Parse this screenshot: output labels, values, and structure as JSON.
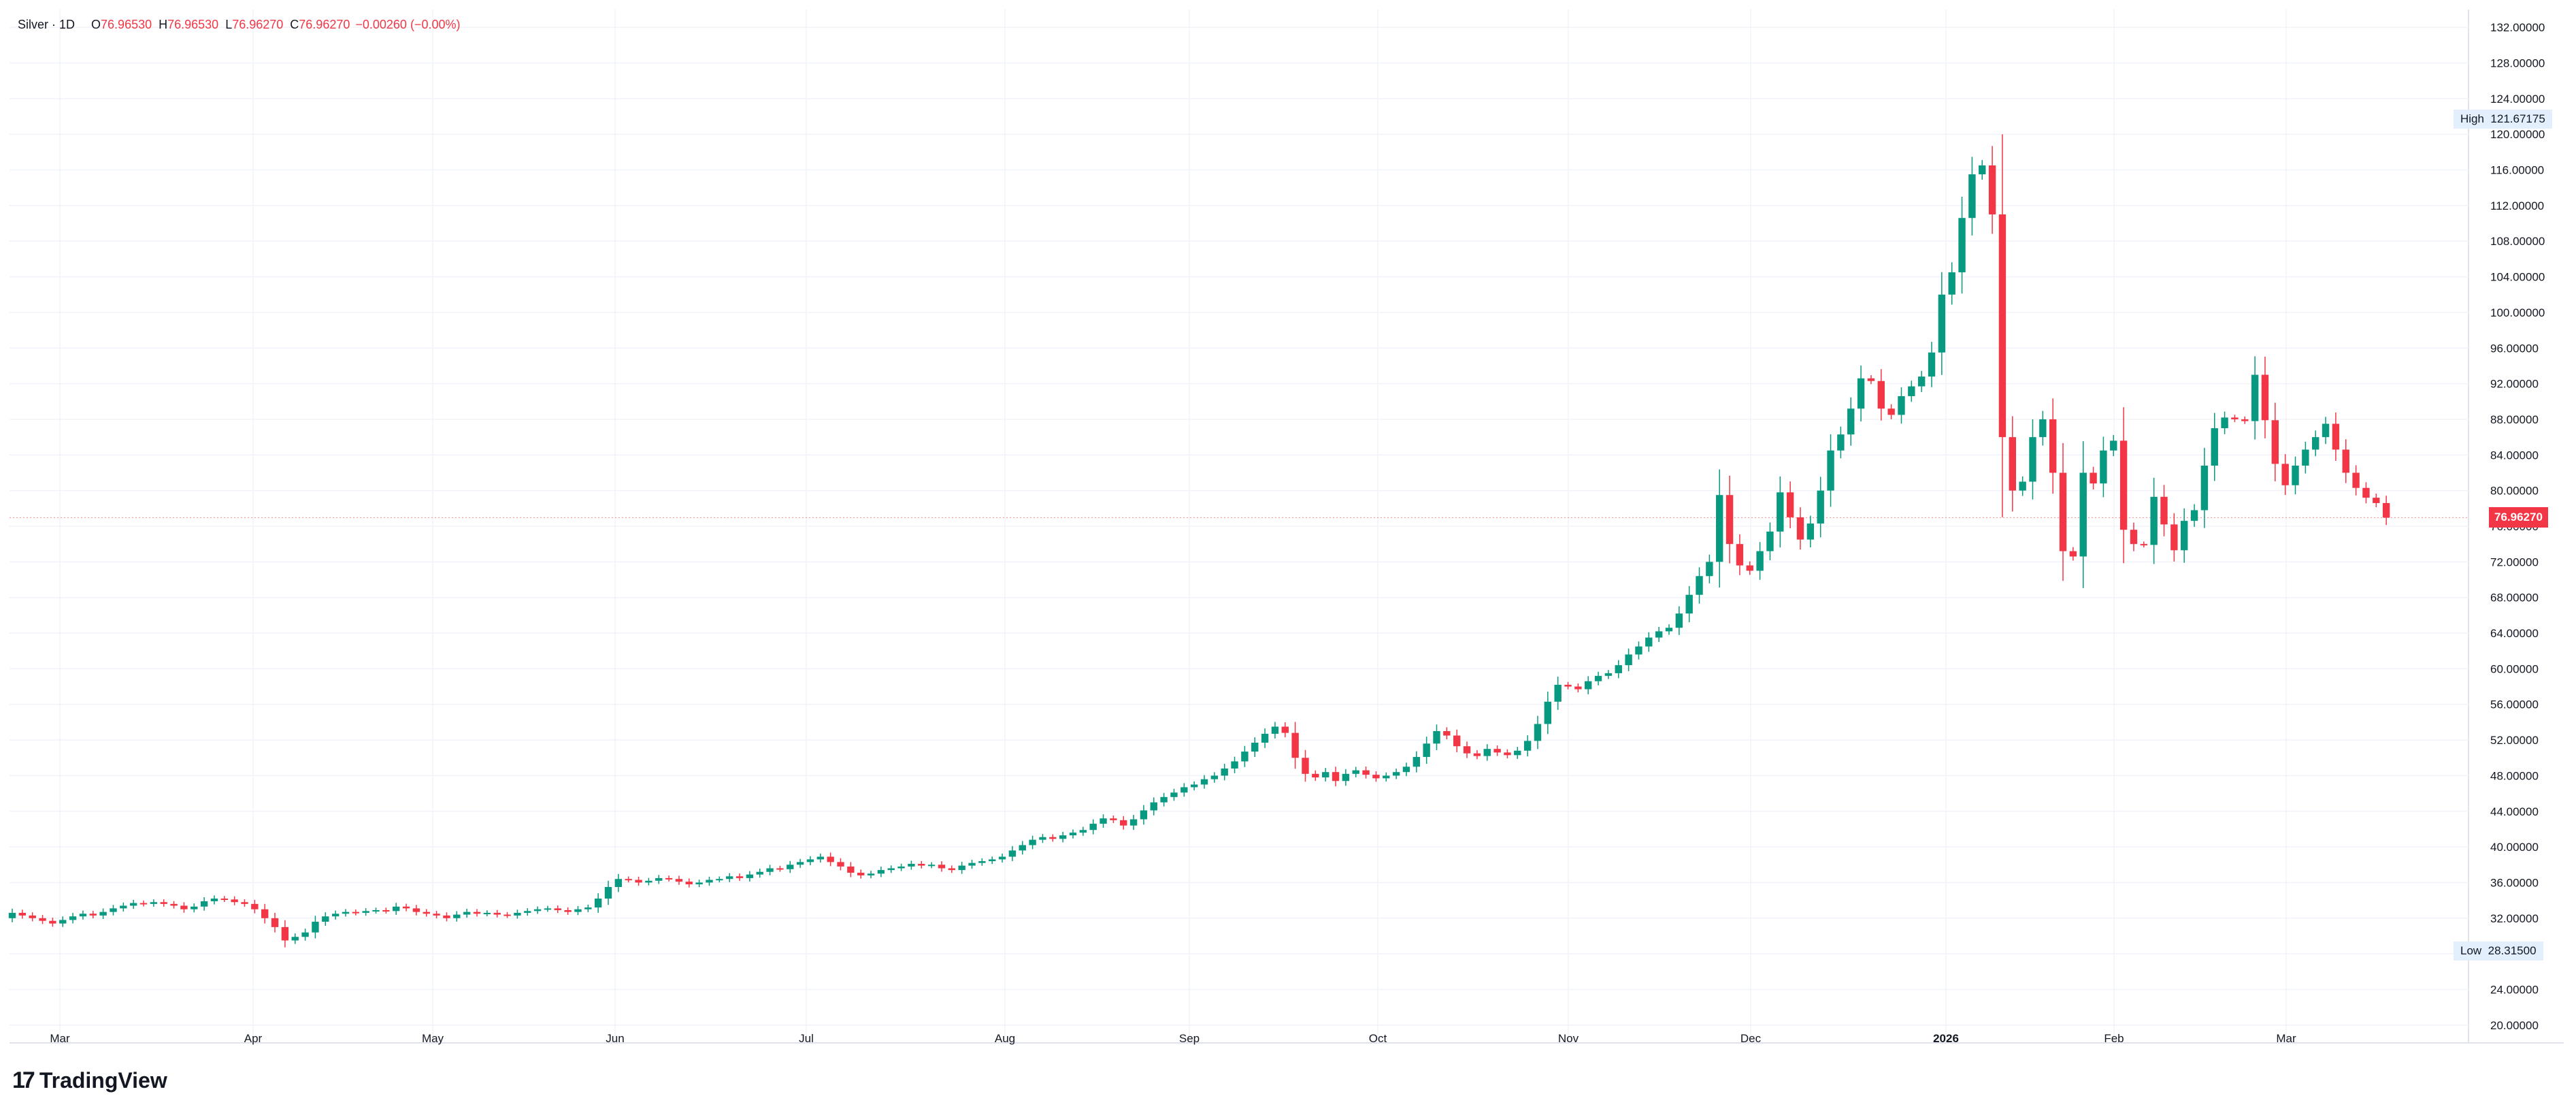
{
  "legend": {
    "symbol": "Silver · 1D",
    "o_label": "O",
    "o_value": "76.96530",
    "h_label": "H",
    "h_value": "76.96530",
    "l_label": "L",
    "l_value": "76.96270",
    "c_label": "C",
    "c_value": "76.96270",
    "change": "−0.00260 (−0.00%)"
  },
  "branding": {
    "logo_text": "TradingView",
    "logo_mark": "17"
  },
  "colors": {
    "up": "#089981",
    "down": "#f23645",
    "grid": "#f0f3fa",
    "axis_text": "#131722",
    "label_bg": "#e3effd"
  },
  "chart_data": {
    "type": "candlestick",
    "title": "Silver · 1D",
    "y_axis": {
      "side": "right",
      "range": [
        18,
        134
      ],
      "ticks": [
        "132.00000",
        "128.00000",
        "124.00000",
        "120.00000",
        "116.00000",
        "112.00000",
        "108.00000",
        "104.00000",
        "100.00000",
        "96.00000",
        "92.00000",
        "88.00000",
        "84.00000",
        "80.00000",
        "76.00000",
        "72.00000",
        "68.00000",
        "64.00000",
        "60.00000",
        "56.00000",
        "52.00000",
        "48.00000",
        "44.00000",
        "40.00000",
        "36.00000",
        "32.00000",
        "28.00000",
        "24.00000",
        "20.00000"
      ]
    },
    "x_axis": {
      "labels": [
        "Mar",
        "Apr",
        "May",
        "Jun",
        "Jul",
        "Aug",
        "Sep",
        "Oct",
        "Nov",
        "Dec",
        "2026",
        "Feb",
        "Mar"
      ]
    },
    "grid": true,
    "last_price": "76.96270",
    "high": {
      "label": "High",
      "value": "121.67175"
    },
    "low": {
      "label": "Low",
      "value": "28.31500"
    },
    "series": [
      {
        "m": "2025-02",
        "o": [
          32.0,
          32.6,
          32.3,
          32.0,
          31.7,
          31.4,
          31.8,
          32.2,
          32.5,
          32.3,
          32.7,
          33.1,
          33.4,
          33.7,
          33.6,
          33.8,
          33.6,
          33.4,
          33.0,
          33.3,
          33.9,
          34.2,
          34.1,
          33.8,
          33.6,
          33.0
        ]
      },
      {
        "m": "2025-04",
        "o": [
          32.0,
          31.0,
          29.5,
          29.9,
          30.4,
          31.6,
          32.2,
          32.5,
          32.7,
          32.6,
          32.8,
          32.9,
          32.8,
          33.3,
          33.1,
          32.7,
          32.5,
          32.3,
          32.0,
          32.4,
          32.7,
          32.5,
          32.6,
          32.4,
          32.3,
          32.6,
          32.8,
          33.0,
          33.1,
          32.9,
          32.7,
          33.0,
          33.2,
          34.2,
          35.5,
          36.4,
          36.3,
          36.0,
          36.2,
          36.5,
          36.4,
          36.1,
          35.8,
          36.0,
          36.3,
          36.4,
          36.7,
          36.5,
          36.9,
          37.2,
          37.6,
          37.5,
          38.0,
          38.3,
          38.6,
          38.9,
          38.3,
          37.8,
          37.1,
          36.8,
          37.0,
          37.4,
          37.6,
          37.8,
          38.1,
          37.9,
          38.0,
          37.6,
          37.4,
          37.9,
          38.2,
          38.4,
          38.6,
          38.9,
          39.6,
          40.2,
          40.8,
          41.1,
          40.9,
          41.3,
          41.6,
          41.9,
          42.6,
          43.2,
          43.0,
          42.4,
          43.1,
          44.1,
          45.0,
          45.6,
          46.1,
          46.7,
          47.0,
          47.6,
          48.0,
          48.8,
          49.6,
          50.7,
          51.7,
          52.7,
          53.5,
          52.8,
          50.0,
          48.2,
          47.8,
          48.4,
          47.4,
          48.2,
          48.6,
          48.1,
          47.7,
          48.0,
          48.4,
          49.0,
          50.1,
          51.6,
          53.0,
          52.5,
          51.3,
          50.5,
          50.2,
          51.0,
          50.6,
          50.3,
          50.8,
          51.9,
          53.8,
          56.3,
          58.2,
          58.0,
          57.7,
          58.6,
          59.2,
          59.5,
          60.4,
          61.6,
          62.5,
          63.5,
          64.2,
          64.6,
          66.2,
          68.3,
          70.4,
          72.0,
          79.5,
          74.0,
          71.6,
          71.0,
          73.2,
          75.4,
          79.8,
          77.0,
          74.5,
          76.3,
          80.0,
          84.5,
          86.3,
          89.2,
          92.6,
          92.3,
          89.2,
          88.5,
          90.6,
          91.7,
          92.8,
          95.5,
          102.0,
          104.5,
          110.6,
          115.5,
          116.5,
          111.0,
          86.0,
          80.0,
          81.0,
          86.0,
          88.0,
          82.0,
          73.2,
          72.6,
          82.0,
          80.8,
          84.5,
          85.6,
          75.6,
          74.0,
          73.9,
          79.3,
          76.2,
          73.3,
          76.6,
          77.8,
          82.8,
          87.0,
          88.2,
          88.0,
          87.8,
          93.0,
          87.9,
          83.0,
          80.6,
          82.8,
          84.6,
          86.0,
          87.5,
          84.6,
          82.0,
          80.3,
          79.2,
          78.6,
          76.96
        ]
      }
    ]
  }
}
